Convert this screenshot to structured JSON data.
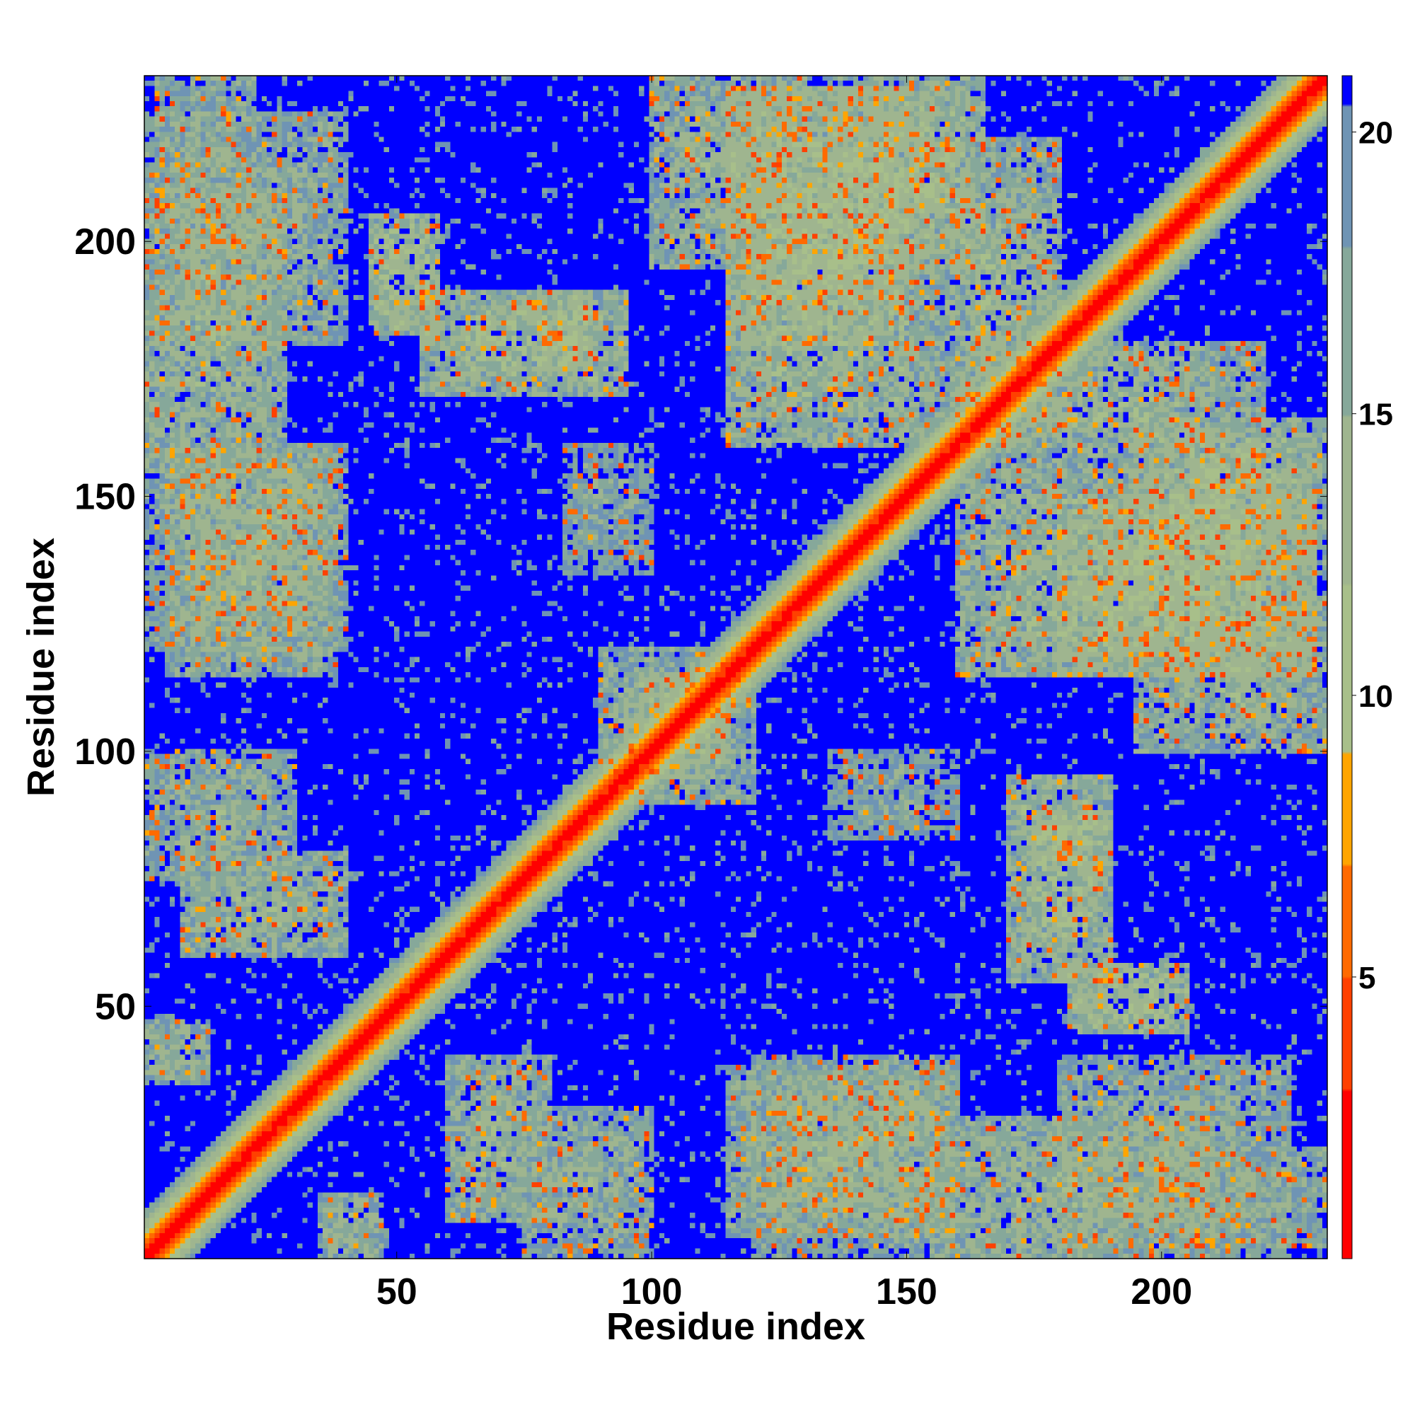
{
  "chart_data": {
    "type": "heatmap",
    "title": "",
    "xlabel": "Residue index",
    "ylabel": "Residue index",
    "n_residues": 232,
    "xlim": [
      1,
      232
    ],
    "ylim": [
      1,
      232
    ],
    "x_ticks": [
      50,
      100,
      150,
      200
    ],
    "y_ticks": [
      50,
      100,
      150,
      200
    ],
    "colorbar": {
      "ticks": [
        5,
        10,
        15,
        20
      ],
      "range": [
        0,
        21
      ],
      "colors": {
        "0": "#ff0000",
        "3": "#ff4000",
        "5": "#ff6a00",
        "7": "#ffa500",
        "9": "#a8bf8a",
        "12": "#9fb58f",
        "15": "#86a89a",
        "18": "#6f94b4",
        "20.5": "#0000ff"
      }
    },
    "diagonal_band_width": 9,
    "contact_bands": [
      {
        "a": [
          1,
          13
        ],
        "b": [
          35,
          47
        ],
        "dist": 14
      },
      {
        "a": [
          1,
          30
        ],
        "b": [
          75,
          100
        ],
        "dist": 15
      },
      {
        "a": [
          1,
          40
        ],
        "b": [
          120,
          160
        ],
        "dist": 15
      },
      {
        "a": [
          1,
          40
        ],
        "b": [
          180,
          225
        ],
        "dist": 15
      },
      {
        "a": [
          45,
          58
        ],
        "b": [
          182,
          205
        ],
        "dist": 12
      },
      {
        "a": [
          60,
          80
        ],
        "b": [
          8,
          40
        ],
        "dist": 14
      },
      {
        "a": [
          78,
          88
        ],
        "b": [
          175,
          190
        ],
        "dist": 12
      },
      {
        "a": [
          83,
          100
        ],
        "b": [
          135,
          160
        ],
        "dist": 16
      },
      {
        "a": [
          90,
          115
        ],
        "b": [
          95,
          120
        ],
        "dist": 14
      },
      {
        "a": [
          115,
          155
        ],
        "b": [
          160,
          230
        ],
        "dist": 13
      },
      {
        "a": [
          115,
          160
        ],
        "b": [
          5,
          38
        ],
        "dist": 14
      },
      {
        "a": [
          155,
          180
        ],
        "b": [
          160,
          220
        ],
        "dist": 14
      },
      {
        "a": [
          170,
          190
        ],
        "b": [
          55,
          95
        ],
        "dist": 13
      },
      {
        "a": [
          155,
          210
        ],
        "b": [
          1,
          28
        ],
        "dist": 14
      },
      {
        "a": [
          180,
          230
        ],
        "b": [
          115,
          150
        ],
        "dist": 13
      },
      {
        "a": [
          195,
          232
        ],
        "b": [
          135,
          165
        ],
        "dist": 13
      },
      {
        "a": [
          100,
          130
        ],
        "b": [
          195,
          232
        ],
        "dist": 14
      },
      {
        "a": [
          200,
          232
        ],
        "b": [
          3,
          22
        ],
        "dist": 15
      }
    ]
  }
}
